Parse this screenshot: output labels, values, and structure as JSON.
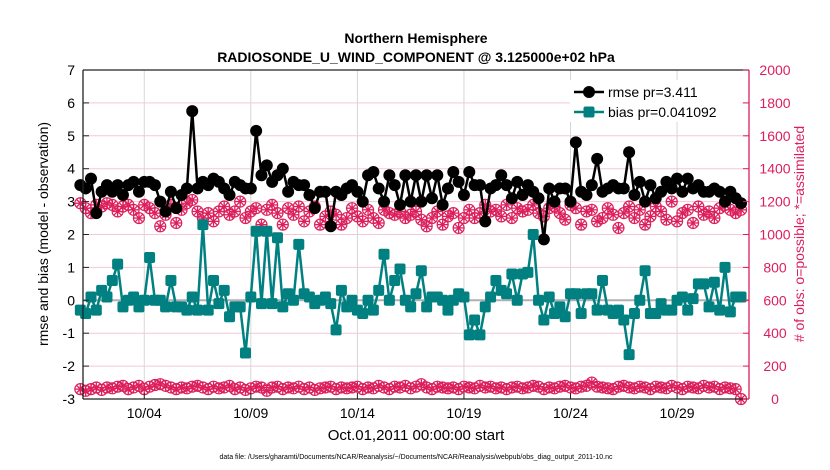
{
  "chart_data": {
    "type": "line",
    "title": "Northern Hemisphere",
    "subtitle": "RADIOSONDE_U_WIND_COMPONENT @ 3.125000e+02 hPa",
    "xlabel": "Oct.01,2011 00:00:00 start",
    "ylabel": "rmse and bias (model - observation)",
    "ylabel_right": "# of obs: o=possible; *=assimilated",
    "footnote": "data file: /Users/gharamti/Documents/NCAR/Reanalysis/~/Documents/NCAR/Reanalysis/webpub/obs_diag_output_2011-10.nc",
    "xlim": [
      "10/01 03:00",
      "11/01 09:00"
    ],
    "ylim": [
      -3,
      7
    ],
    "ylim_right": [
      0,
      2000
    ],
    "x_ticks": [
      "10/04",
      "10/09",
      "10/14",
      "10/19",
      "10/24",
      "10/29"
    ],
    "y_ticks": [
      -3,
      -2,
      -1,
      0,
      1,
      2,
      3,
      4,
      5,
      6,
      7
    ],
    "y_ticks_right": [
      0,
      200,
      400,
      600,
      800,
      1000,
      1200,
      1400,
      1600,
      1800,
      2000
    ],
    "grid": true,
    "legend_position": "top-right",
    "colors": {
      "rmse": "#000000",
      "bias": "#008080",
      "obs": "#dc1f5c",
      "zero_line": "#b0b0b0"
    },
    "x": [
      "10/01 00:00",
      "10/01 06:00",
      "10/01 12:00",
      "10/01 18:00",
      "10/02 00:00",
      "10/02 06:00",
      "10/02 12:00",
      "10/02 18:00",
      "10/03 00:00",
      "10/03 06:00",
      "10/03 12:00",
      "10/03 18:00",
      "10/04 00:00",
      "10/04 06:00",
      "10/04 12:00",
      "10/04 18:00",
      "10/05 00:00",
      "10/05 06:00",
      "10/05 12:00",
      "10/05 18:00",
      "10/06 00:00",
      "10/06 06:00",
      "10/06 12:00",
      "10/06 18:00",
      "10/07 00:00",
      "10/07 06:00",
      "10/07 12:00",
      "10/07 18:00",
      "10/08 00:00",
      "10/08 06:00",
      "10/08 12:00",
      "10/08 18:00",
      "10/09 00:00",
      "10/09 06:00",
      "10/09 12:00",
      "10/09 18:00",
      "10/10 00:00",
      "10/10 06:00",
      "10/10 12:00",
      "10/10 18:00",
      "10/11 00:00",
      "10/11 06:00",
      "10/11 12:00",
      "10/11 18:00",
      "10/12 00:00",
      "10/12 06:00",
      "10/12 12:00",
      "10/12 18:00",
      "10/13 00:00",
      "10/13 06:00",
      "10/13 12:00",
      "10/13 18:00",
      "10/14 00:00",
      "10/14 06:00",
      "10/14 12:00",
      "10/14 18:00",
      "10/15 00:00",
      "10/15 06:00",
      "10/15 12:00",
      "10/15 18:00",
      "10/16 00:00",
      "10/16 06:00",
      "10/16 12:00",
      "10/16 18:00",
      "10/17 00:00",
      "10/17 06:00",
      "10/17 12:00",
      "10/17 18:00",
      "10/18 00:00",
      "10/18 06:00",
      "10/18 12:00",
      "10/18 18:00",
      "10/19 00:00",
      "10/19 06:00",
      "10/19 12:00",
      "10/19 18:00",
      "10/20 00:00",
      "10/20 06:00",
      "10/20 12:00",
      "10/20 18:00",
      "10/21 00:00",
      "10/21 06:00",
      "10/21 12:00",
      "10/21 18:00",
      "10/22 00:00",
      "10/22 06:00",
      "10/22 12:00",
      "10/22 18:00",
      "10/23 00:00",
      "10/23 06:00",
      "10/23 12:00",
      "10/23 18:00",
      "10/24 00:00",
      "10/24 06:00",
      "10/24 12:00",
      "10/24 18:00",
      "10/25 00:00",
      "10/25 06:00",
      "10/25 12:00",
      "10/25 18:00",
      "10/26 00:00",
      "10/26 06:00",
      "10/26 12:00",
      "10/26 18:00",
      "10/27 00:00",
      "10/27 06:00",
      "10/27 12:00",
      "10/27 18:00",
      "10/28 00:00",
      "10/28 06:00",
      "10/28 12:00",
      "10/28 18:00",
      "10/29 00:00",
      "10/29 06:00",
      "10/29 12:00",
      "10/29 18:00",
      "10/30 00:00",
      "10/30 06:00",
      "10/30 12:00",
      "10/30 18:00",
      "10/31 00:00",
      "10/31 06:00",
      "10/31 12:00",
      "10/31 18:00",
      "11/01 00:00"
    ],
    "series": [
      {
        "name": "rmse pr=3.411",
        "axis": "left",
        "marker": "circle",
        "values": [
          3.5,
          3.4,
          3.7,
          2.65,
          3.3,
          3.5,
          3.3,
          3.5,
          3.2,
          3.5,
          3.6,
          3.3,
          3.6,
          3.6,
          3.5,
          3.0,
          2.7,
          3.3,
          2.8,
          3.2,
          3.4,
          5.75,
          3.4,
          3.6,
          3.5,
          3.7,
          3.6,
          3.4,
          3.2,
          3.6,
          3.5,
          3.4,
          3.4,
          5.15,
          3.8,
          4.1,
          3.6,
          3.8,
          4.0,
          3.3,
          3.6,
          3.5,
          3.5,
          3.2,
          2.8,
          3.3,
          3.3,
          2.25,
          3.3,
          3.2,
          3.4,
          3.5,
          3.3,
          3.0,
          3.8,
          3.9,
          3.4,
          3.0,
          3.8,
          3.5,
          2.9,
          3.8,
          3.0,
          3.8,
          3.0,
          3.8,
          3.1,
          3.8,
          2.9,
          3.4,
          3.9,
          3.6,
          3.2,
          3.9,
          3.5,
          3.5,
          2.4,
          3.4,
          3.5,
          3.8,
          3.5,
          3.1,
          3.6,
          3.2,
          3.5,
          3.3,
          3.1,
          1.85,
          3.4,
          3.0,
          3.4,
          3.4,
          3.0,
          4.8,
          3.3,
          3.2,
          3.5,
          4.3,
          3.3,
          3.4,
          3.5,
          3.4,
          3.4,
          4.5,
          3.2,
          3.6,
          3.0,
          3.5,
          3.1,
          3.3,
          3.6,
          3.4,
          3.7,
          3.3,
          3.7,
          3.4,
          3.5,
          3.3,
          3.3,
          3.4,
          3.3,
          3.0,
          3.3,
          3.1,
          2.95
        ]
      },
      {
        "name": "bias pr=0.041092",
        "axis": "left",
        "marker": "square",
        "values": [
          -0.3,
          -0.4,
          0.1,
          -0.3,
          0.3,
          0.1,
          0.6,
          1.1,
          -0.2,
          0.0,
          0.1,
          -0.2,
          0.0,
          1.3,
          0.0,
          0.0,
          -0.2,
          0.6,
          -0.2,
          -0.2,
          -0.3,
          0.1,
          -0.3,
          2.3,
          -0.3,
          0.6,
          -0.1,
          0.3,
          -0.5,
          -0.2,
          -0.2,
          -1.6,
          0.1,
          2.1,
          -0.1,
          2.1,
          -0.1,
          1.9,
          -0.2,
          0.2,
          0.0,
          1.7,
          0.2,
          0.1,
          -0.1,
          0.0,
          0.1,
          -0.1,
          -0.9,
          0.3,
          -0.2,
          0.0,
          -0.3,
          -0.4,
          0.0,
          -0.3,
          0.3,
          1.4,
          0.0,
          0.6,
          0.95,
          0.0,
          -0.2,
          0.2,
          0.9,
          -0.2,
          0.1,
          0.1,
          0.0,
          -0.3,
          0.0,
          0.2,
          0.1,
          -1.05,
          -0.6,
          -1.05,
          -0.2,
          0.1,
          0.6,
          0.3,
          0.2,
          0.8,
          0.0,
          0.8,
          0.85,
          2.0,
          0.0,
          -0.6,
          0.1,
          -0.4,
          -0.2,
          -0.5,
          0.2,
          0.2,
          -0.4,
          0.2,
          0.2,
          -0.3,
          0.6,
          -0.3,
          -0.4,
          -0.3,
          -0.6,
          -1.65,
          -0.4,
          0.0,
          0.9,
          -0.4,
          -0.4,
          -0.1,
          -0.3,
          -0.3,
          0.0,
          0.1,
          -0.3,
          0.05,
          0.5,
          0.5,
          -0.2,
          0.55,
          -0.3,
          1.0,
          -0.35,
          0.1,
          0.1
        ]
      },
      {
        "axis": "right",
        "marker": "circle-open",
        "values": [
          1190,
          1160,
          1130,
          1180,
          1170,
          1190,
          1180,
          1140,
          1170,
          1180,
          1150,
          1100,
          1180,
          1160,
          1130,
          1050,
          1120,
          1180,
          1070,
          1150,
          1190,
          1210,
          1140,
          1100,
          1130,
          1080,
          1140,
          1170,
          1120,
          1140,
          1200,
          1100,
          1140,
          1160,
          1060,
          1150,
          1180,
          1130,
          1060,
          1160,
          1120,
          1170,
          1080,
          1140,
          1170,
          1060,
          1110,
          1140,
          1120,
          1060,
          1100,
          1160,
          1110,
          1080,
          1150,
          1100,
          1070,
          1150,
          1130,
          1120,
          1140,
          1100,
          1120,
          1140,
          1090,
          1050,
          1100,
          1140,
          1060,
          1110,
          1130,
          1040,
          1100,
          1150,
          1100,
          1130,
          1180,
          1140,
          1150,
          1110,
          1180,
          1100,
          1160,
          1140,
          1150,
          1180,
          1130,
          1110,
          1160,
          1170,
          1130,
          1090,
          1180,
          1160,
          1060,
          1140,
          1150,
          1080,
          1100,
          1160,
          1120,
          1040,
          1130,
          1170,
          1100,
          1150,
          1060,
          1110,
          1170,
          1140,
          1090,
          1200,
          1080,
          1130,
          1150,
          1070,
          1170,
          1120,
          1140,
          1100,
          1160,
          1180,
          1150,
          1130,
          1150
        ]
      },
      {
        "axis": "right",
        "marker": "asterisk",
        "values": [
          1190,
          1160,
          1130,
          1180,
          1170,
          1190,
          1180,
          1140,
          1170,
          1180,
          1150,
          1100,
          1180,
          1160,
          1130,
          1050,
          1120,
          1180,
          1070,
          1150,
          1190,
          1210,
          1140,
          1100,
          1130,
          1080,
          1140,
          1170,
          1120,
          1140,
          1200,
          1100,
          1140,
          1160,
          1060,
          1150,
          1180,
          1130,
          1060,
          1160,
          1120,
          1170,
          1080,
          1140,
          1170,
          1060,
          1110,
          1140,
          1120,
          1060,
          1100,
          1160,
          1110,
          1080,
          1150,
          1100,
          1070,
          1150,
          1130,
          1120,
          1140,
          1100,
          1120,
          1140,
          1090,
          1050,
          1100,
          1140,
          1060,
          1110,
          1130,
          1040,
          1100,
          1150,
          1100,
          1130,
          1180,
          1140,
          1150,
          1110,
          1180,
          1100,
          1160,
          1140,
          1150,
          1180,
          1130,
          1110,
          1160,
          1170,
          1130,
          1090,
          1180,
          1160,
          1060,
          1140,
          1150,
          1080,
          1100,
          1160,
          1120,
          1040,
          1130,
          1170,
          1100,
          1150,
          1060,
          1110,
          1170,
          1140,
          1090,
          1200,
          1080,
          1130,
          1150,
          1070,
          1170,
          1120,
          1140,
          1100,
          1160,
          1180,
          1150,
          1130,
          1150
        ]
      },
      {
        "axis": "right",
        "marker": "circle-open",
        "values": [
          60,
          50,
          60,
          70,
          55,
          70,
          65,
          75,
          80,
          60,
          70,
          80,
          60,
          75,
          85,
          90,
          80,
          70,
          60,
          70,
          65,
          75,
          80,
          70,
          60,
          75,
          65,
          70,
          80,
          60,
          70,
          55,
          65,
          75,
          70,
          50,
          70,
          75,
          60,
          70,
          65,
          75,
          60,
          70,
          55,
          65,
          70,
          75,
          60,
          70,
          65,
          70,
          75,
          60,
          70,
          65,
          80,
          70,
          60,
          75,
          70,
          80,
          65,
          75,
          90,
          70,
          60,
          75,
          70,
          65,
          70,
          60,
          75,
          70,
          65,
          80,
          70,
          75,
          65,
          70,
          60,
          70,
          75,
          65,
          70,
          80,
          75,
          60,
          70,
          65,
          75,
          80,
          70,
          65,
          75,
          80,
          100,
          75,
          70,
          65,
          60,
          75,
          80,
          70,
          65,
          75,
          70,
          60,
          75,
          70,
          65,
          80,
          70,
          60,
          75,
          70,
          65,
          80,
          70,
          75,
          60,
          70,
          65,
          60,
          0
        ]
      },
      {
        "axis": "right",
        "marker": "asterisk",
        "values": [
          60,
          50,
          60,
          70,
          55,
          70,
          65,
          75,
          80,
          60,
          70,
          80,
          60,
          75,
          85,
          90,
          80,
          70,
          60,
          70,
          65,
          75,
          80,
          70,
          60,
          75,
          65,
          70,
          80,
          60,
          70,
          55,
          65,
          75,
          70,
          50,
          70,
          75,
          60,
          70,
          65,
          75,
          60,
          70,
          55,
          65,
          70,
          75,
          60,
          70,
          65,
          70,
          75,
          60,
          70,
          65,
          80,
          70,
          60,
          75,
          70,
          80,
          65,
          75,
          90,
          70,
          60,
          75,
          70,
          65,
          70,
          60,
          75,
          70,
          65,
          80,
          70,
          75,
          65,
          70,
          60,
          70,
          75,
          65,
          70,
          80,
          75,
          60,
          70,
          65,
          75,
          80,
          70,
          65,
          75,
          80,
          100,
          75,
          70,
          65,
          60,
          75,
          80,
          70,
          65,
          75,
          70,
          60,
          75,
          70,
          65,
          80,
          70,
          60,
          75,
          70,
          65,
          80,
          70,
          75,
          60,
          70,
          65,
          60,
          0
        ]
      }
    ]
  }
}
